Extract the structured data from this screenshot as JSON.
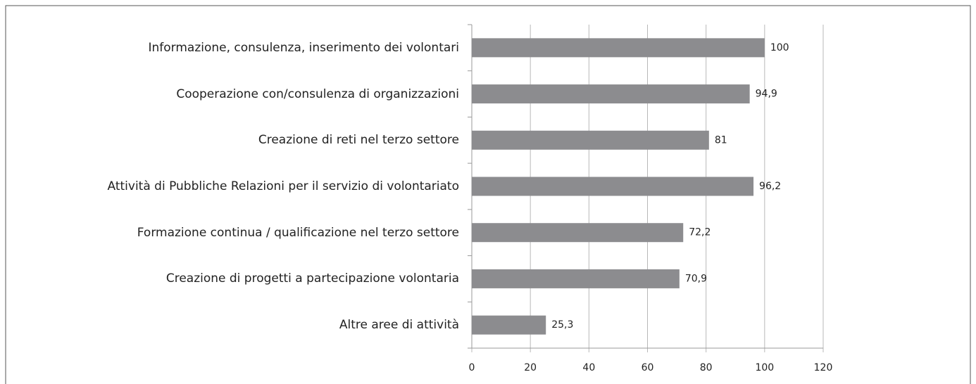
{
  "chart_data": {
    "type": "bar",
    "orientation": "horizontal",
    "categories": [
      "Informazione, consulenza, inserimento dei volontari",
      "Cooperazione con/consulenza di organizzazioni",
      "Creazione di reti nel terzo settore",
      "Attività di Pubbliche Relazioni per il servizio di volontariato",
      "Formazione continua / qualificazione nel terzo settore",
      "Creazione di progetti a partecipazione volontaria",
      "Altre aree di attività"
    ],
    "values": [
      100,
      94.9,
      81,
      96.2,
      72.2,
      70.9,
      25.3
    ],
    "value_labels": [
      "100",
      "94,9",
      "81",
      "96,2",
      "72,2",
      "70,9",
      "25,3"
    ],
    "color": "#8c8c8f",
    "xlim": [
      0,
      120
    ],
    "xticks": [
      0,
      20,
      40,
      60,
      80,
      100,
      120
    ],
    "grid": true
  }
}
